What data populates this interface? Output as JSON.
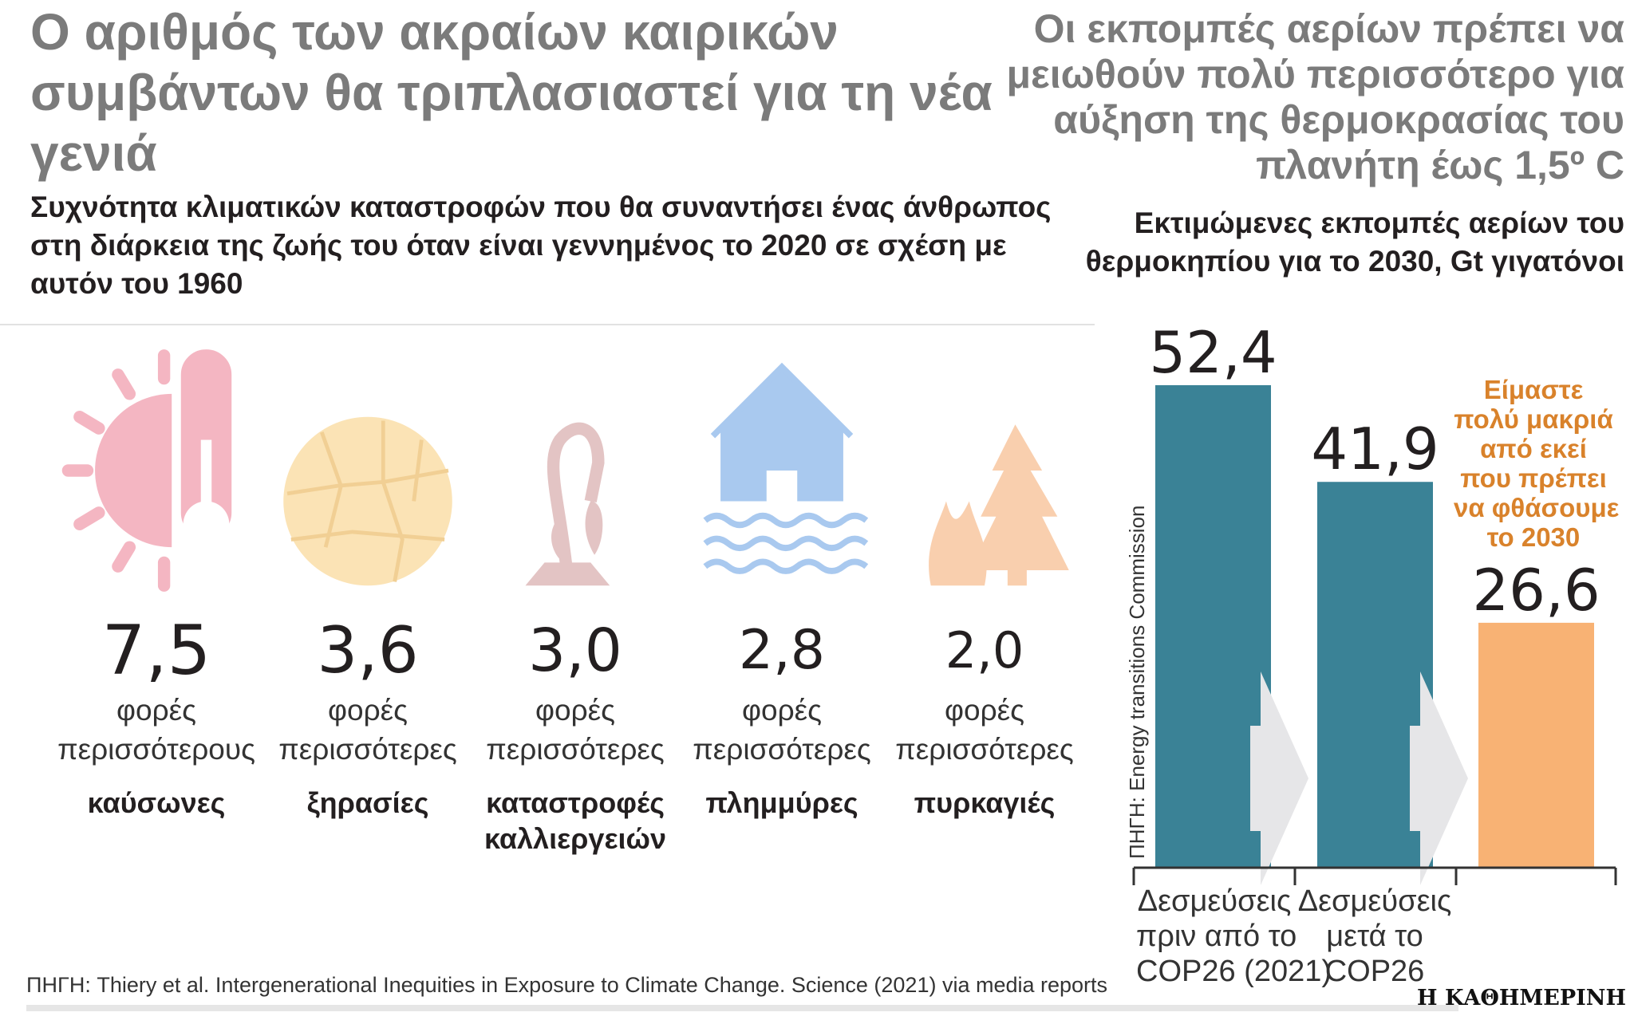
{
  "left": {
    "title": "Ο αριθμός των ακραίων καιρικών συμβάντων θα τριπλασιαστεί για τη νέα γενιά",
    "subtitle": "Συχνότητα κλιματικών καταστροφών που θα συναντήσει ένας άνθρωπος στη διάρκεια της ζωής του όταν είναι γεννημένος το 2020 σε σχέση με αυτόν του 1960",
    "items": [
      {
        "value": "7,5",
        "unit1": "φορές",
        "unit2": "περισσότερους",
        "label": "καύσωνες",
        "icon": "sun-thermometer-icon",
        "color": "#f4b6c2"
      },
      {
        "value": "3,6",
        "unit1": "φορές",
        "unit2": "περισσότερες",
        "label": "ξηρασίες",
        "icon": "cracked-earth-icon",
        "color": "#fbe3b5"
      },
      {
        "value": "3,0",
        "unit1": "φορές",
        "unit2": "περισσότερες",
        "label": "καταστροφές καλλιεργειών",
        "icon": "wilted-plant-icon",
        "color": "#e3c4c4"
      },
      {
        "value": "2,8",
        "unit1": "φορές",
        "unit2": "περισσότερες",
        "label": "πλημμύρες",
        "icon": "flooded-house-icon",
        "color": "#a9c9ef"
      },
      {
        "value": "2,0",
        "unit1": "φορές",
        "unit2": "περισσότερες",
        "label": "πυρκαγιές",
        "icon": "forest-fire-icon",
        "color": "#f9cfae"
      }
    ],
    "source": "ΠΗΓΗ: Thiery et al. Intergenerational Inequities in Exposure to Climate Change. Science (2021) via media reports"
  },
  "right": {
    "title": "Οι εκπομπές αερίων πρέπει να μειωθούν πολύ περισσότερο για αύξηση της θερμοκρασίας του πλανήτη έως 1,5º C",
    "subtitle": "Εκτιμώμενες εκπομπές αερίων του θερμοκηπίου για το 2030, Gt γιγατόνοι",
    "source": "ΠΗΓΗ: Energy transitions Commission",
    "annotation": [
      "Είμαστε",
      "πολύ μακριά",
      "από εκεί",
      "που πρέπει",
      "να φθάσουμε",
      "το 2030"
    ]
  },
  "chart_data": {
    "type": "bar",
    "title": "Εκτιμώμενες εκπομπές αερίων του θερμοκηπίου για το 2030, Gt γιγατόνοι",
    "categories": [
      [
        "Δεσμεύσεις",
        "πριν από το",
        "COP26 (2021)"
      ],
      [
        "Δεσμεύσεις",
        "μετά το",
        "COP26"
      ],
      []
    ],
    "values": [
      52.4,
      41.9,
      26.6
    ],
    "value_labels": [
      "52,4",
      "41,9",
      "26,6"
    ],
    "colors": [
      "#3a8296",
      "#3a8296",
      "#f8b274"
    ],
    "ylim": [
      0,
      52.4
    ],
    "grid": false
  },
  "logo": "Η ΚΑΘΗΜΕΡΙΝΗ"
}
